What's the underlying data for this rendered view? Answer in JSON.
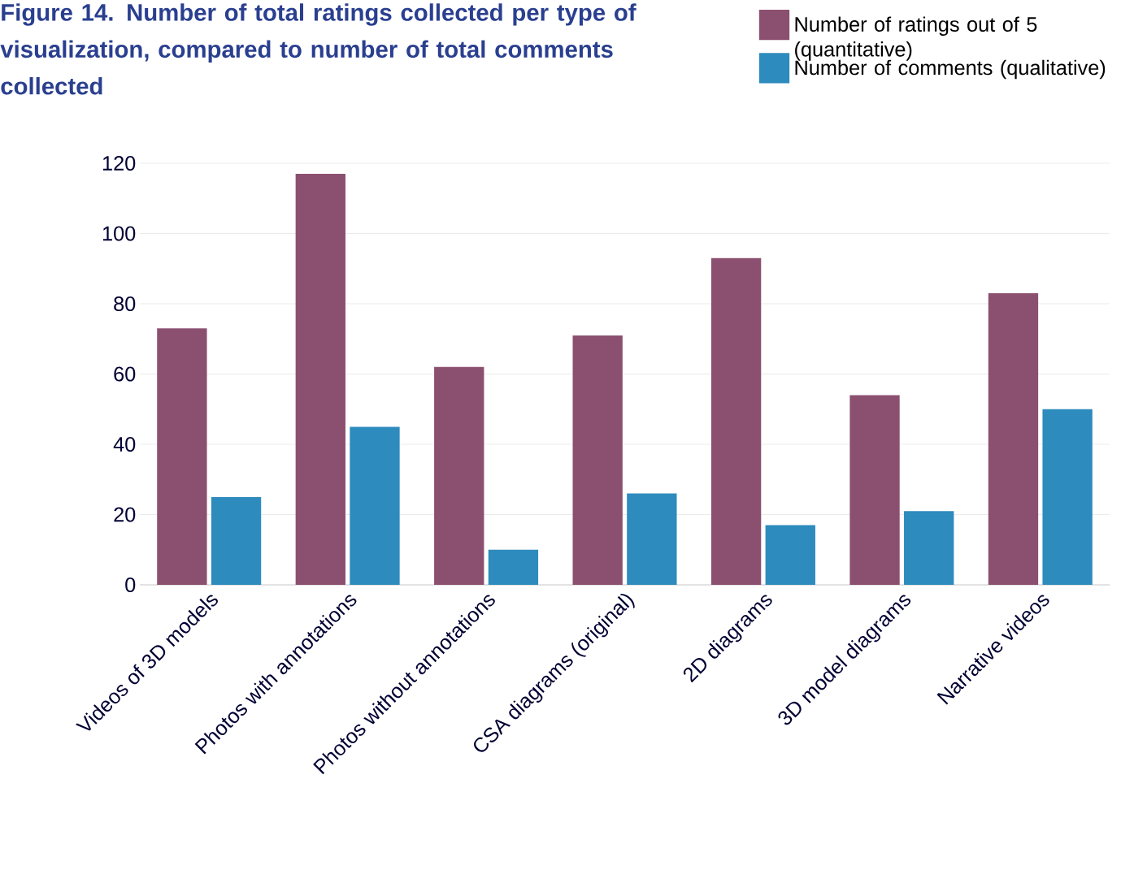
{
  "chart_data": {
    "type": "bar",
    "title": "Figure 14. Number of total ratings collected per type of visualization, compared to number of total comments collected",
    "categories": [
      "Videos of 3D models",
      "Photos with annotations",
      "Photos without annotations",
      "CSA diagrams (original)",
      "2D diagrams",
      "3D model diagrams",
      "Narrative videos"
    ],
    "series": [
      {
        "name": "Number of ratings out of 5 (quantitative)",
        "color": "#8b5070",
        "values": [
          73,
          117,
          62,
          71,
          93,
          54,
          83
        ]
      },
      {
        "name": "Number of comments (qualitative)",
        "color": "#2e8bbd",
        "values": [
          25,
          45,
          10,
          26,
          17,
          21,
          50
        ]
      }
    ],
    "ylim": [
      0,
      120
    ],
    "yticks": [
      0,
      20,
      40,
      60,
      80,
      100,
      120
    ],
    "grid": "y",
    "legend": "top right"
  }
}
